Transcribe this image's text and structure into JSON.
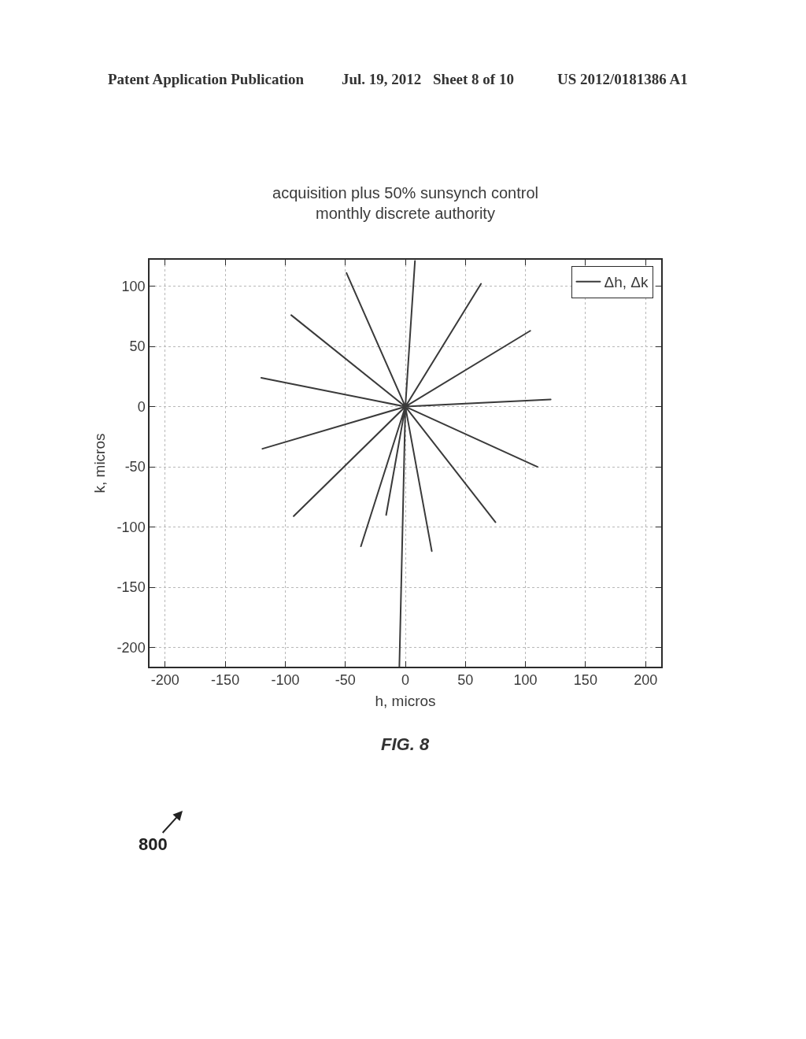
{
  "chart_data": {
    "type": "line",
    "title": "acquisition plus 50% sunsynch control",
    "subtitle": "monthly discrete authority",
    "xlabel": "h, micros",
    "ylabel": "k, micros",
    "x": [
      121,
      0,
      104,
      0,
      63,
      0,
      8,
      0,
      -49,
      0,
      -95,
      0,
      -120,
      0,
      -119,
      0,
      -93,
      0,
      -37,
      0,
      -16,
      0,
      -5,
      0,
      22,
      0,
      75,
      0,
      110
    ],
    "series": [
      {
        "name": "Δh, Δk",
        "color": "#3a3a3a",
        "values": [
          6,
          0,
          63,
          0,
          102,
          0,
          121,
          0,
          111,
          0,
          76,
          0,
          24,
          0,
          -35,
          0,
          -91,
          0,
          -116,
          0,
          -90,
          0,
          -216,
          0,
          -120,
          0,
          -96,
          0,
          -50
        ]
      }
    ],
    "xlim": [
      -213,
      213
    ],
    "ylim": [
      -216,
      122
    ],
    "xticks": [
      -200,
      -150,
      -100,
      -50,
      0,
      50,
      100,
      150,
      200
    ],
    "yticks": [
      -200,
      -150,
      -100,
      -50,
      0,
      50,
      100
    ],
    "grid": true,
    "legend": "top right",
    "annotations": [
      "Patent Application Publication",
      "Jul. 19, 2012",
      "Sheet 8 of 10",
      "US 2012/0181386 A1",
      "800",
      "FIG. 8"
    ]
  }
}
